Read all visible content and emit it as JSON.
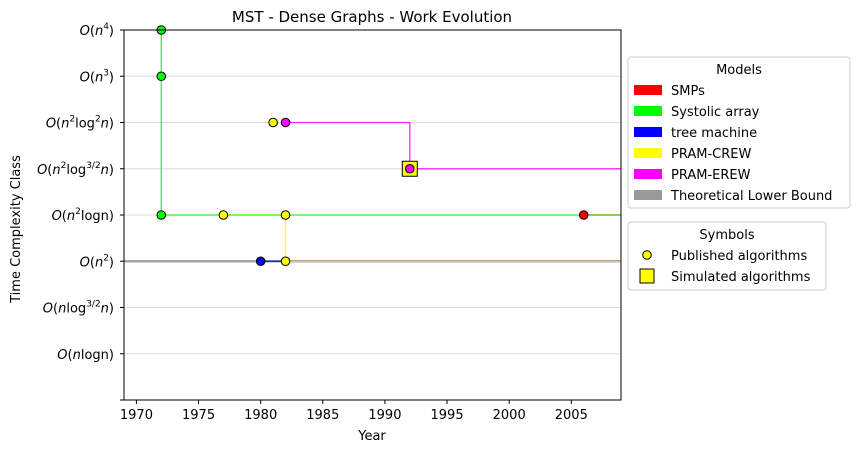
{
  "chart_data": {
    "type": "line",
    "title": "MST - Dense Graphs - Work Evolution",
    "xlabel": "Year",
    "ylabel": "Time Complexity Class",
    "xlim": [
      1969,
      2009
    ],
    "ylim": [
      -1,
      7
    ],
    "xticks": [
      1970,
      1975,
      1980,
      1985,
      1990,
      1995,
      2000,
      2005
    ],
    "yticks": [
      {
        "value": 0,
        "base": "O(n",
        "sup": "",
        "tail": "logn)"
      },
      {
        "value": 1,
        "base": "O(n",
        "sup": "",
        "tail": "log",
        "sup2": "3/2",
        "tail2": "n)"
      },
      {
        "value": 2,
        "base": "O(n",
        "sup": "2",
        "tail": ")"
      },
      {
        "value": 3,
        "base": "O(n",
        "sup": "2",
        "tail": "logn)"
      },
      {
        "value": 4,
        "base": "O(n",
        "sup": "2",
        "tail": "log",
        "sup2": "3/2",
        "tail2": "n)"
      },
      {
        "value": 5,
        "base": "O(n",
        "sup": "2",
        "tail": "log",
        "sup2": "2",
        "tail2": "n)"
      },
      {
        "value": 6,
        "base": "O(n",
        "sup": "3",
        "tail": ")"
      },
      {
        "value": 7,
        "base": "O(n",
        "sup": "4",
        "tail": ")"
      }
    ],
    "grid": "horizontal",
    "series": [
      {
        "name": "SMPs",
        "color": "#ff0000",
        "points": [
          {
            "x": 2006,
            "y": 3,
            "kind": "published"
          }
        ],
        "step": [
          [
            2006,
            3
          ],
          [
            2009,
            3
          ]
        ]
      },
      {
        "name": "Systolic array",
        "color": "#00ff00",
        "points": [
          {
            "x": 1972,
            "y": 7,
            "kind": "published"
          },
          {
            "x": 1972,
            "y": 6,
            "kind": "published"
          },
          {
            "x": 1972,
            "y": 3,
            "kind": "published"
          }
        ],
        "step": [
          [
            1972,
            7
          ],
          [
            1972,
            3
          ],
          [
            2009,
            3
          ]
        ]
      },
      {
        "name": "tree machine",
        "color": "#0000ff",
        "points": [
          {
            "x": 1980,
            "y": 2,
            "kind": "published"
          }
        ],
        "step": [
          [
            1980,
            2
          ],
          [
            2009,
            2
          ]
        ]
      },
      {
        "name": "PRAM-CREW",
        "color": "#ffff00",
        "points": [
          {
            "x": 1977,
            "y": 3,
            "kind": "published"
          },
          {
            "x": 1982,
            "y": 3,
            "kind": "published"
          },
          {
            "x": 1982,
            "y": 2,
            "kind": "published"
          },
          {
            "x": 1981,
            "y": 5,
            "kind": "published"
          }
        ],
        "step": [
          [
            1977,
            3
          ],
          [
            1982,
            3
          ],
          [
            1982,
            2
          ],
          [
            2009,
            2
          ]
        ]
      },
      {
        "name": "PRAM-EREW",
        "color": "#ff00ff",
        "points": [
          {
            "x": 1982,
            "y": 5,
            "kind": "published"
          },
          {
            "x": 1992,
            "y": 4,
            "kind": "simulated"
          }
        ],
        "step": [
          [
            1982,
            5
          ],
          [
            1992,
            5
          ],
          [
            1992,
            4
          ],
          [
            2009,
            4
          ]
        ]
      },
      {
        "name": "Theoretical Lower Bound",
        "color": "#999999",
        "points": [],
        "step": [
          [
            1969,
            2
          ],
          [
            2009,
            2
          ]
        ]
      }
    ],
    "legend_models": {
      "title": "Models",
      "placement": "right",
      "entries": [
        {
          "label": "SMPs",
          "color": "#ff0000"
        },
        {
          "label": "Systolic array",
          "color": "#00ff00"
        },
        {
          "label": "tree machine",
          "color": "#0000ff"
        },
        {
          "label": "PRAM-CREW",
          "color": "#ffff00"
        },
        {
          "label": "PRAM-EREW",
          "color": "#ff00ff"
        },
        {
          "label": "Theoretical Lower Bound",
          "color": "#999999"
        }
      ]
    },
    "legend_symbols": {
      "title": "Symbols",
      "placement": "right",
      "entries": [
        {
          "label": "Published algorithms",
          "marker": "circle",
          "color": "#ffff00"
        },
        {
          "label": "Simulated algorithms",
          "marker": "square",
          "color": "#ffff00"
        }
      ]
    }
  }
}
